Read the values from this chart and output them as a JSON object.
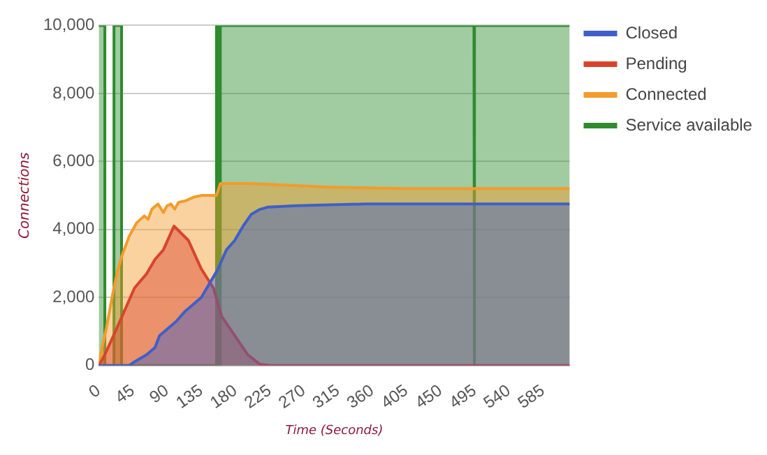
{
  "chart_data": {
    "type": "area",
    "xlabel": "Time (Seconds)",
    "ylabel": "Connections",
    "xlim": [
      0,
      620
    ],
    "xticks": [
      0,
      45,
      90,
      135,
      180,
      225,
      270,
      315,
      360,
      405,
      450,
      495,
      540,
      585
    ],
    "ylim": [
      0,
      10000
    ],
    "yticks": [
      0,
      {
        "value": 2000,
        "label": "2,000"
      },
      {
        "value": 4000,
        "label": "4,000"
      },
      {
        "value": 6000,
        "label": "6,000"
      },
      {
        "value": 8000,
        "label": "8,000"
      },
      {
        "value": 10000,
        "label": "10,000"
      }
    ],
    "grid": "y",
    "legend": "right",
    "marker": "none",
    "series": [
      {
        "name": "Closed",
        "color": "#3f5fc8",
        "x": [
          0,
          40,
          47,
          63,
          74,
          80,
          91,
          102,
          113,
          124,
          135,
          146,
          157,
          168,
          179,
          190,
          201,
          212,
          223,
          260,
          350,
          620
        ],
        "values": [
          0,
          0,
          110,
          320,
          530,
          880,
          1090,
          1300,
          1580,
          1790,
          2000,
          2420,
          2840,
          3400,
          3680,
          4100,
          4450,
          4590,
          4660,
          4700,
          4750,
          4750
        ]
      },
      {
        "name": "Pending",
        "color": "#d9432c",
        "x": [
          0,
          8,
          25,
          47,
          63,
          74,
          85,
          99,
          118,
          135,
          151,
          162,
          179,
          196,
          212,
          225,
          620
        ],
        "values": [
          0,
          320,
          1160,
          2280,
          2700,
          3120,
          3400,
          4100,
          3680,
          2840,
          2280,
          1440,
          880,
          320,
          40,
          0,
          0
        ]
      },
      {
        "name": "Connected",
        "color": "#f39b2a",
        "x": [
          0,
          5,
          10,
          15,
          20,
          25,
          30,
          40,
          50,
          60,
          65,
          70,
          78,
          85,
          90,
          95,
          100,
          105,
          115,
          125,
          135,
          148,
          155,
          160,
          200,
          250,
          300,
          400,
          620
        ],
        "values": [
          0,
          600,
          1100,
          1700,
          2300,
          2800,
          3200,
          3800,
          4200,
          4400,
          4300,
          4600,
          4750,
          4500,
          4700,
          4750,
          4600,
          4800,
          4850,
          4950,
          5000,
          5000,
          5000,
          5350,
          5350,
          5300,
          5250,
          5200,
          5200
        ]
      },
      {
        "name": "Service available",
        "color": "#2e8b2e",
        "x": [
          0,
          8,
          8,
          20,
          20,
          30,
          30,
          155,
          155,
          158,
          158,
          160,
          160,
          494,
          494,
          495,
          495,
          620
        ],
        "values": [
          10000,
          10000,
          0,
          0,
          10000,
          10000,
          0,
          0,
          10000,
          10000,
          0,
          0,
          10000,
          10000,
          0,
          0,
          10000,
          10000
        ]
      }
    ]
  }
}
